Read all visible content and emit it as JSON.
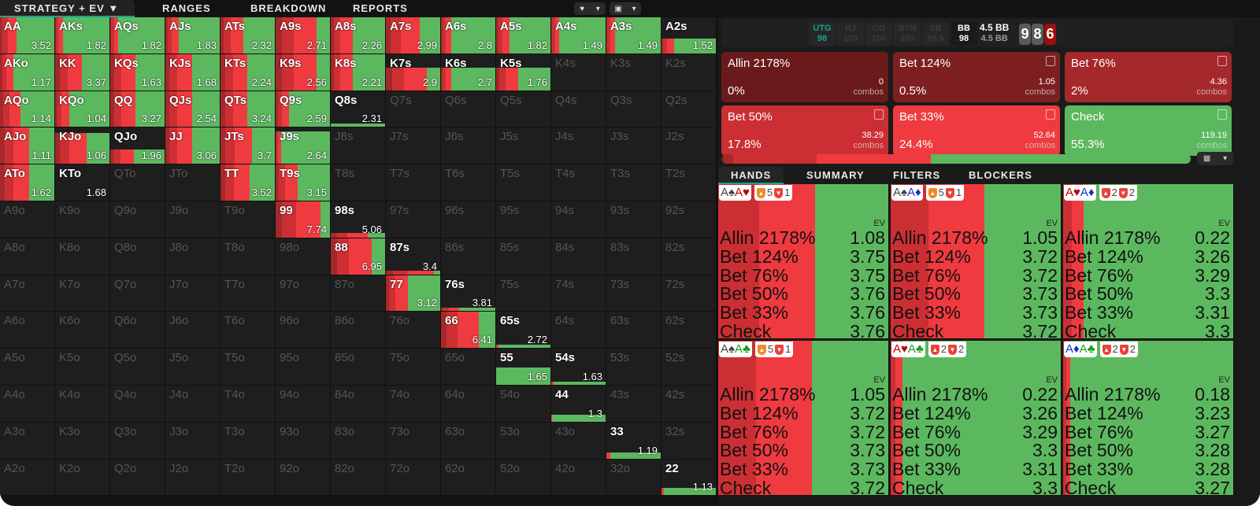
{
  "nav": {
    "tabs": [
      "STRATEGY + EV",
      "RANGES",
      "BREAKDOWN",
      "REPORTS"
    ],
    "active": 0
  },
  "colors": {
    "allin": "#6b1a1c",
    "bet124": "#7d1f21",
    "bet76": "#a5282b",
    "bet50": "#cc2f33",
    "bet33": "#ef3b40",
    "check": "#5cb85f",
    "accent": "#17a58b"
  },
  "grid": {
    "mix_order": [
      "bet76",
      "bet50",
      "bet33",
      "check"
    ],
    "rows": [
      [
        {
          "h": "AA",
          "ev": "3.52",
          "w": 1,
          "s": [
            0.05,
            0.09,
            0.17,
            0.69
          ]
        },
        {
          "h": "AKs",
          "ev": "1.82",
          "w": 1,
          "s": [
            0.02,
            0.04,
            0.08,
            0.86
          ]
        },
        {
          "h": "AQs",
          "ev": "1.82",
          "w": 1,
          "s": [
            0.02,
            0.05,
            0.08,
            0.85
          ]
        },
        {
          "h": "AJs",
          "ev": "1.83",
          "w": 1,
          "s": [
            0.04,
            0.07,
            0.13,
            0.76
          ]
        },
        {
          "h": "ATs",
          "ev": "2.32",
          "w": 1,
          "s": [
            0.06,
            0.13,
            0.23,
            0.58
          ]
        },
        {
          "h": "A9s",
          "ev": "2.71",
          "w": 1,
          "s": [
            0.11,
            0.23,
            0.42,
            0.24
          ]
        },
        {
          "h": "A8s",
          "ev": "2.26",
          "w": 1,
          "s": [
            0.06,
            0.12,
            0.22,
            0.6
          ]
        },
        {
          "h": "A7s",
          "ev": "2.99",
          "w": 1,
          "s": [
            0.09,
            0.19,
            0.35,
            0.37
          ]
        },
        {
          "h": "A6s",
          "ev": "2.8",
          "w": 1,
          "s": [
            0.03,
            0.06,
            0.1,
            0.81
          ]
        },
        {
          "h": "A5s",
          "ev": "1.82",
          "w": 1,
          "s": [
            0.04,
            0.07,
            0.13,
            0.76
          ]
        },
        {
          "h": "A4s",
          "ev": "1.49",
          "w": 1,
          "s": [
            0.02,
            0.05,
            0.08,
            0.85
          ]
        },
        {
          "h": "A3s",
          "ev": "1.49",
          "w": 1,
          "s": [
            0.02,
            0.05,
            0.09,
            0.84
          ]
        },
        {
          "h": "A2s",
          "ev": "1.52",
          "w": 0.42,
          "s": [
            0.03,
            0.07,
            0.13,
            0.77
          ]
        }
      ],
      [
        {
          "h": "AKo",
          "ev": "1.17",
          "w": 1,
          "s": [
            0.04,
            0.07,
            0.13,
            0.76
          ]
        },
        {
          "h": "KK",
          "ev": "3.37",
          "w": 1,
          "s": [
            0.08,
            0.15,
            0.27,
            0.5
          ]
        },
        {
          "h": "KQs",
          "ev": "1.63",
          "w": 1,
          "s": [
            0.07,
            0.14,
            0.26,
            0.53
          ]
        },
        {
          "h": "KJs",
          "ev": "1.68",
          "w": 1,
          "s": [
            0.07,
            0.15,
            0.27,
            0.51
          ]
        },
        {
          "h": "KTs",
          "ev": "2.24",
          "w": 1,
          "s": [
            0.08,
            0.15,
            0.27,
            0.5
          ]
        },
        {
          "h": "K9s",
          "ev": "2.56",
          "w": 1,
          "s": [
            0.11,
            0.23,
            0.42,
            0.24
          ]
        },
        {
          "h": "K8s",
          "ev": "2.21",
          "w": 1,
          "s": [
            0.06,
            0.12,
            0.22,
            0.6
          ]
        },
        {
          "h": "K7s",
          "ev": "2.9",
          "w": 0.62,
          "s": [
            0.11,
            0.23,
            0.41,
            0.25
          ]
        },
        {
          "h": "K6s",
          "ev": "2.7",
          "w": 0.62,
          "s": [
            0.03,
            0.06,
            0.1,
            0.81
          ]
        },
        {
          "h": "K5s",
          "ev": "1.76",
          "w": 0.62,
          "s": [
            0.06,
            0.12,
            0.22,
            0.6
          ]
        },
        {
          "h": "K4s"
        },
        {
          "h": "K3s"
        },
        {
          "h": "K2s"
        }
      ],
      [
        {
          "h": "AQo",
          "ev": "1.14",
          "w": 1,
          "s": [
            0.06,
            0.11,
            0.2,
            0.63
          ]
        },
        {
          "h": "KQo",
          "ev": "1.04",
          "w": 1,
          "s": [
            0.04,
            0.08,
            0.14,
            0.74
          ]
        },
        {
          "h": "QQ",
          "ev": "3.27",
          "w": 1,
          "s": [
            0.07,
            0.14,
            0.26,
            0.53
          ]
        },
        {
          "h": "QJs",
          "ev": "2.54",
          "w": 1,
          "s": [
            0.07,
            0.15,
            0.27,
            0.51
          ]
        },
        {
          "h": "QTs",
          "ev": "3.24",
          "w": 1,
          "s": [
            0.08,
            0.15,
            0.27,
            0.5
          ]
        },
        {
          "h": "Q9s",
          "ev": "2.59",
          "w": 1,
          "s": [
            0.04,
            0.07,
            0.13,
            0.76
          ]
        },
        {
          "h": "Q8s",
          "ev": "2.31",
          "w": 0.1,
          "s": [
            0,
            0,
            0,
            1
          ]
        },
        {
          "h": "Q7s"
        },
        {
          "h": "Q6s"
        },
        {
          "h": "Q5s"
        },
        {
          "h": "Q4s"
        },
        {
          "h": "Q3s"
        },
        {
          "h": "Q2s"
        }
      ],
      [
        {
          "h": "AJo",
          "ev": "1.11",
          "w": 1,
          "s": [
            0.08,
            0.16,
            0.29,
            0.47
          ]
        },
        {
          "h": "KJo",
          "ev": "1.06",
          "w": 0.85,
          "s": [
            0.09,
            0.17,
            0.32,
            0.42
          ]
        },
        {
          "h": "QJo",
          "ev": "1.96",
          "w": 0.4,
          "s": [
            0.06,
            0.13,
            0.24,
            0.57
          ]
        },
        {
          "h": "JJ",
          "ev": "3.06",
          "w": 1,
          "s": [
            0.07,
            0.15,
            0.27,
            0.51
          ]
        },
        {
          "h": "JTs",
          "ev": "3.7",
          "w": 1,
          "s": [
            0.09,
            0.17,
            0.32,
            0.42
          ]
        },
        {
          "h": "J9s",
          "ev": "2.64",
          "w": 0.9,
          "s": [
            0.01,
            0.03,
            0.06,
            0.9
          ]
        },
        {
          "h": "J8s"
        },
        {
          "h": "J7s"
        },
        {
          "h": "J6s"
        },
        {
          "h": "J5s"
        },
        {
          "h": "J4s"
        },
        {
          "h": "J3s"
        },
        {
          "h": "J2s"
        }
      ],
      [
        {
          "h": "ATo",
          "ev": "1.62",
          "w": 1,
          "s": [
            0.08,
            0.16,
            0.29,
            0.47
          ]
        },
        {
          "h": "KTo",
          "ev": "1.68",
          "w": 0.01,
          "s": [
            0,
            0,
            0,
            1
          ]
        },
        {
          "h": "QTo"
        },
        {
          "h": "JTo"
        },
        {
          "h": "TT",
          "ev": "3.52",
          "w": 1,
          "s": [
            0.08,
            0.16,
            0.3,
            0.46
          ]
        },
        {
          "h": "T9s",
          "ev": "3.15",
          "w": 1,
          "s": [
            0.06,
            0.12,
            0.22,
            0.6
          ]
        },
        {
          "h": "T8s"
        },
        {
          "h": "T7s"
        },
        {
          "h": "T6s"
        },
        {
          "h": "T5s"
        },
        {
          "h": "T4s"
        },
        {
          "h": "T3s"
        },
        {
          "h": "T2s"
        }
      ],
      [
        {
          "h": "A9o"
        },
        {
          "h": "K9o"
        },
        {
          "h": "Q9o"
        },
        {
          "h": "J9o"
        },
        {
          "h": "T9o"
        },
        {
          "h": "99",
          "ev": "7.74",
          "w": 1,
          "s": [
            0.12,
            0.25,
            0.45,
            0.18
          ]
        },
        {
          "h": "98s",
          "ev": "5.06",
          "w": 0.13,
          "s": [
            0.1,
            0.2,
            0.38,
            0.32
          ]
        },
        {
          "h": "97s"
        },
        {
          "h": "96s"
        },
        {
          "h": "95s"
        },
        {
          "h": "94s"
        },
        {
          "h": "93s"
        },
        {
          "h": "92s"
        }
      ],
      [
        {
          "h": "A8o"
        },
        {
          "h": "K8o"
        },
        {
          "h": "Q8o"
        },
        {
          "h": "J8o"
        },
        {
          "h": "T8o"
        },
        {
          "h": "98o"
        },
        {
          "h": "88",
          "ev": "6.95",
          "w": 1,
          "s": [
            0.11,
            0.23,
            0.41,
            0.25
          ]
        },
        {
          "h": "87s",
          "ev": "3.4",
          "w": 0.1,
          "s": [
            0.13,
            0.26,
            0.49,
            0.12
          ]
        },
        {
          "h": "86s"
        },
        {
          "h": "85s"
        },
        {
          "h": "84s"
        },
        {
          "h": "83s"
        },
        {
          "h": "82s"
        }
      ],
      [
        {
          "h": "A7o"
        },
        {
          "h": "K7o"
        },
        {
          "h": "Q7o"
        },
        {
          "h": "J7o"
        },
        {
          "h": "T7o"
        },
        {
          "h": "97o"
        },
        {
          "h": "87o"
        },
        {
          "h": "77",
          "ev": "3.12",
          "w": 1,
          "s": [
            0.06,
            0.12,
            0.22,
            0.6
          ]
        },
        {
          "h": "76s",
          "ev": "3.81",
          "w": 0.1,
          "s": [
            0.05,
            0.1,
            0.18,
            0.67
          ]
        },
        {
          "h": "75s"
        },
        {
          "h": "74s"
        },
        {
          "h": "73s"
        },
        {
          "h": "72s"
        }
      ],
      [
        {
          "h": "A6o"
        },
        {
          "h": "K6o"
        },
        {
          "h": "Q6o"
        },
        {
          "h": "J6o"
        },
        {
          "h": "T6o"
        },
        {
          "h": "96o"
        },
        {
          "h": "86o"
        },
        {
          "h": "76o"
        },
        {
          "h": "66",
          "ev": "6.41",
          "w": 1,
          "s": [
            0.1,
            0.21,
            0.39,
            0.3
          ]
        },
        {
          "h": "65s",
          "ev": "2.72",
          "w": 0.1,
          "s": [
            0,
            0,
            0.05,
            0.95
          ]
        },
        {
          "h": "64s"
        },
        {
          "h": "63s"
        },
        {
          "h": "62s"
        }
      ],
      [
        {
          "h": "A5o"
        },
        {
          "h": "K5o"
        },
        {
          "h": "Q5o"
        },
        {
          "h": "J5o"
        },
        {
          "h": "T5o"
        },
        {
          "h": "95o"
        },
        {
          "h": "85o"
        },
        {
          "h": "75o"
        },
        {
          "h": "65o"
        },
        {
          "h": "55",
          "ev": "1.65",
          "w": 0.47,
          "s": [
            0,
            0,
            0,
            1
          ]
        },
        {
          "h": "54s",
          "ev": "1.63",
          "w": 0.08,
          "s": [
            0,
            0,
            0.05,
            0.95
          ]
        },
        {
          "h": "53s"
        },
        {
          "h": "52s"
        }
      ],
      [
        {
          "h": "A4o"
        },
        {
          "h": "K4o"
        },
        {
          "h": "Q4o"
        },
        {
          "h": "J4o"
        },
        {
          "h": "T4o"
        },
        {
          "h": "94o"
        },
        {
          "h": "84o"
        },
        {
          "h": "74o"
        },
        {
          "h": "64o"
        },
        {
          "h": "54o"
        },
        {
          "h": "44",
          "ev": "1.3",
          "w": 0.19,
          "s": [
            0,
            0,
            0.01,
            0.99
          ]
        },
        {
          "h": "43s"
        },
        {
          "h": "42s"
        }
      ],
      [
        {
          "h": "A3o"
        },
        {
          "h": "K3o"
        },
        {
          "h": "Q3o"
        },
        {
          "h": "J3o"
        },
        {
          "h": "T3o"
        },
        {
          "h": "93o"
        },
        {
          "h": "83o"
        },
        {
          "h": "73o"
        },
        {
          "h": "63o"
        },
        {
          "h": "53o"
        },
        {
          "h": "43o"
        },
        {
          "h": "33",
          "ev": "1.19",
          "w": 0.17,
          "s": [
            0,
            0,
            0.07,
            0.93
          ]
        },
        {
          "h": "32s"
        }
      ],
      [
        {
          "h": "A2o"
        },
        {
          "h": "K2o"
        },
        {
          "h": "Q2o"
        },
        {
          "h": "J2o"
        },
        {
          "h": "T2o"
        },
        {
          "h": "92o"
        },
        {
          "h": "82o"
        },
        {
          "h": "72o"
        },
        {
          "h": "62o"
        },
        {
          "h": "52o"
        },
        {
          "h": "42o"
        },
        {
          "h": "32o"
        },
        {
          "h": "22",
          "ev": "1.13",
          "w": 0.2,
          "s": [
            0,
            0,
            0.05,
            0.95
          ]
        }
      ]
    ]
  },
  "positions": [
    {
      "name": "UTG",
      "stack": "98",
      "state": "active"
    },
    {
      "name": "HJ",
      "stack": "100",
      "state": "folded"
    },
    {
      "name": "CO",
      "stack": "100",
      "state": "folded"
    },
    {
      "name": "BTN",
      "stack": "100",
      "state": "folded"
    },
    {
      "name": "SB",
      "stack": "99.5",
      "state": "folded"
    },
    {
      "name": "BB",
      "stack": "98",
      "state": "current"
    }
  ],
  "pot": {
    "main": "4.5 BB",
    "sub": "4.5 BB"
  },
  "board": [
    {
      "rank": "9",
      "color": "#5a5a5a"
    },
    {
      "rank": "8",
      "color": "#5a5a5a"
    },
    {
      "rank": "6",
      "color": "#a00d0d"
    }
  ],
  "actions": [
    {
      "name": "Allin 2178%",
      "pct": "0%",
      "combos": "0",
      "combos_label": "combos",
      "color": "#6b1a1c",
      "freq": 0
    },
    {
      "name": "Bet 124%",
      "pct": "0.5%",
      "combos": "1.05",
      "combos_label": "combos",
      "color": "#7d1f21",
      "freq": 0.5
    },
    {
      "name": "Bet 76%",
      "pct": "2%",
      "combos": "4.36",
      "combos_label": "combos",
      "color": "#a5282b",
      "freq": 2
    },
    {
      "name": "Bet 50%",
      "pct": "17.8%",
      "combos": "38.29",
      "combos_label": "combos",
      "color": "#cc2f33",
      "freq": 17.8
    },
    {
      "name": "Bet 33%",
      "pct": "24.4%",
      "combos": "52.64",
      "combos_label": "combos",
      "color": "#ef3b40",
      "freq": 24.4
    },
    {
      "name": "Check",
      "pct": "55.3%",
      "combos": "119.19",
      "combos_label": "combos",
      "color": "#5cb85f",
      "freq": 55.3
    }
  ],
  "hand_tabs": [
    "HANDS",
    "SUMMARY",
    "FILTERS",
    "BLOCKERS"
  ],
  "hands": {
    "ev_label": "EV",
    "action_names": [
      "Allin 2178%",
      "Bet 124%",
      "Bet 76%",
      "Bet 50%",
      "Bet 33%",
      "Check"
    ],
    "items": [
      {
        "c1": "A",
        "s1": "♠",
        "k1": "#444",
        "c2": "A",
        "s2": "♥",
        "k2": "#b00",
        "up": "5",
        "down": "1",
        "up_color": "#f08a24",
        "red": 0.57,
        "dark": 0.24,
        "evs": [
          "1.08",
          "3.75",
          "3.75",
          "3.76",
          "3.76",
          "3.76"
        ]
      },
      {
        "c1": "A",
        "s1": "♠",
        "k1": "#444",
        "c2": "A",
        "s2": "♦",
        "k2": "#1530c0",
        "up": "5",
        "down": "1",
        "up_color": "#f08a24",
        "red": 0.55,
        "dark": 0.22,
        "evs": [
          "1.05",
          "3.72",
          "3.72",
          "3.73",
          "3.73",
          "3.72"
        ]
      },
      {
        "c1": "A",
        "s1": "♥",
        "k1": "#b00",
        "c2": "A",
        "s2": "♦",
        "k2": "#1530c0",
        "up": "2",
        "down": "2",
        "up_color": "#e8443a",
        "red": 0.12,
        "dark": 0.05,
        "evs": [
          "0.22",
          "3.26",
          "3.29",
          "3.3",
          "3.31",
          "3.3"
        ]
      },
      {
        "c1": "A",
        "s1": "♠",
        "k1": "#444",
        "c2": "A",
        "s2": "♣",
        "k2": "#1a9a1a",
        "up": "5",
        "down": "1",
        "up_color": "#f08a24",
        "red": 0.55,
        "dark": 0.22,
        "evs": [
          "1.05",
          "3.72",
          "3.72",
          "3.73",
          "3.73",
          "3.72"
        ]
      },
      {
        "c1": "A",
        "s1": "♥",
        "k1": "#b00",
        "c2": "A",
        "s2": "♣",
        "k2": "#1a9a1a",
        "up": "2",
        "down": "2",
        "up_color": "#e8443a",
        "red": 0.07,
        "dark": 0.03,
        "evs": [
          "0.22",
          "3.26",
          "3.29",
          "3.3",
          "3.31",
          "3.3"
        ]
      },
      {
        "c1": "A",
        "s1": "♦",
        "k1": "#1530c0",
        "c2": "A",
        "s2": "♣",
        "k2": "#1a9a1a",
        "up": "2",
        "down": "2",
        "up_color": "#e8443a",
        "red": 0.04,
        "dark": 0.02,
        "evs": [
          "0.18",
          "3.23",
          "3.27",
          "3.28",
          "3.28",
          "3.27"
        ]
      }
    ]
  }
}
